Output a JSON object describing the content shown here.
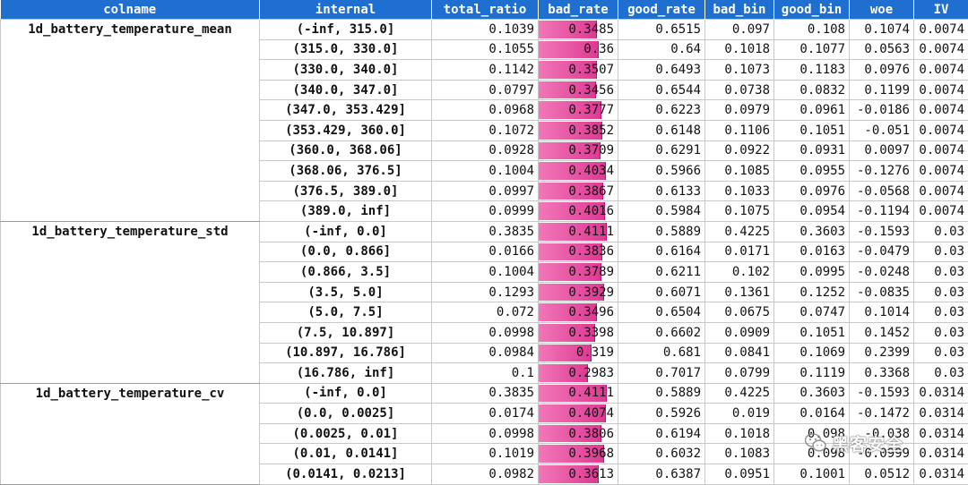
{
  "headers": [
    "colname",
    "internal",
    "total_ratio",
    "bad_rate",
    "good_rate",
    "bad_bin",
    "good_bin",
    "woe",
    "IV"
  ],
  "groups": [
    {
      "colname": "1d_battery_temperature_mean",
      "rows": [
        {
          "internal": "(-inf, 315.0]",
          "total_ratio": "0.1039",
          "bad_rate": "0.3485",
          "good_rate": "0.6515",
          "bad_bin": "0.097",
          "good_bin": "0.108",
          "woe": "0.1074",
          "IV": "0.0074"
        },
        {
          "internal": "(315.0, 330.0]",
          "total_ratio": "0.1055",
          "bad_rate": "0.36",
          "good_rate": "0.64",
          "bad_bin": "0.1018",
          "good_bin": "0.1077",
          "woe": "0.0563",
          "IV": "0.0074"
        },
        {
          "internal": "(330.0, 340.0]",
          "total_ratio": "0.1142",
          "bad_rate": "0.3507",
          "good_rate": "0.6493",
          "bad_bin": "0.1073",
          "good_bin": "0.1183",
          "woe": "0.0976",
          "IV": "0.0074"
        },
        {
          "internal": "(340.0, 347.0]",
          "total_ratio": "0.0797",
          "bad_rate": "0.3456",
          "good_rate": "0.6544",
          "bad_bin": "0.0738",
          "good_bin": "0.0832",
          "woe": "0.1199",
          "IV": "0.0074"
        },
        {
          "internal": "(347.0, 353.429]",
          "total_ratio": "0.0968",
          "bad_rate": "0.3777",
          "good_rate": "0.6223",
          "bad_bin": "0.0979",
          "good_bin": "0.0961",
          "woe": "-0.0186",
          "IV": "0.0074"
        },
        {
          "internal": "(353.429, 360.0]",
          "total_ratio": "0.1072",
          "bad_rate": "0.3852",
          "good_rate": "0.6148",
          "bad_bin": "0.1106",
          "good_bin": "0.1051",
          "woe": "-0.051",
          "IV": "0.0074"
        },
        {
          "internal": "(360.0, 368.06]",
          "total_ratio": "0.0928",
          "bad_rate": "0.3709",
          "good_rate": "0.6291",
          "bad_bin": "0.0922",
          "good_bin": "0.0931",
          "woe": "0.0097",
          "IV": "0.0074"
        },
        {
          "internal": "(368.06, 376.5]",
          "total_ratio": "0.1004",
          "bad_rate": "0.4034",
          "good_rate": "0.5966",
          "bad_bin": "0.1085",
          "good_bin": "0.0955",
          "woe": "-0.1276",
          "IV": "0.0074"
        },
        {
          "internal": "(376.5, 389.0]",
          "total_ratio": "0.0997",
          "bad_rate": "0.3867",
          "good_rate": "0.6133",
          "bad_bin": "0.1033",
          "good_bin": "0.0976",
          "woe": "-0.0568",
          "IV": "0.0074"
        },
        {
          "internal": "(389.0, inf]",
          "total_ratio": "0.0999",
          "bad_rate": "0.4016",
          "good_rate": "0.5984",
          "bad_bin": "0.1075",
          "good_bin": "0.0954",
          "woe": "-0.1194",
          "IV": "0.0074"
        }
      ]
    },
    {
      "colname": "1d_battery_temperature_std",
      "rows": [
        {
          "internal": "(-inf, 0.0]",
          "total_ratio": "0.3835",
          "bad_rate": "0.4111",
          "good_rate": "0.5889",
          "bad_bin": "0.4225",
          "good_bin": "0.3603",
          "woe": "-0.1593",
          "IV": "0.03"
        },
        {
          "internal": "(0.0, 0.866]",
          "total_ratio": "0.0166",
          "bad_rate": "0.3836",
          "good_rate": "0.6164",
          "bad_bin": "0.0171",
          "good_bin": "0.0163",
          "woe": "-0.0479",
          "IV": "0.03"
        },
        {
          "internal": "(0.866, 3.5]",
          "total_ratio": "0.1004",
          "bad_rate": "0.3789",
          "good_rate": "0.6211",
          "bad_bin": "0.102",
          "good_bin": "0.0995",
          "woe": "-0.0248",
          "IV": "0.03"
        },
        {
          "internal": "(3.5, 5.0]",
          "total_ratio": "0.1293",
          "bad_rate": "0.3929",
          "good_rate": "0.6071",
          "bad_bin": "0.1361",
          "good_bin": "0.1252",
          "woe": "-0.0835",
          "IV": "0.03"
        },
        {
          "internal": "(5.0, 7.5]",
          "total_ratio": "0.072",
          "bad_rate": "0.3496",
          "good_rate": "0.6504",
          "bad_bin": "0.0675",
          "good_bin": "0.0747",
          "woe": "0.1014",
          "IV": "0.03"
        },
        {
          "internal": "(7.5, 10.897]",
          "total_ratio": "0.0998",
          "bad_rate": "0.3398",
          "good_rate": "0.6602",
          "bad_bin": "0.0909",
          "good_bin": "0.1051",
          "woe": "0.1452",
          "IV": "0.03"
        },
        {
          "internal": "(10.897, 16.786]",
          "total_ratio": "0.0984",
          "bad_rate": "0.319",
          "good_rate": "0.681",
          "bad_bin": "0.0841",
          "good_bin": "0.1069",
          "woe": "0.2399",
          "IV": "0.03"
        },
        {
          "internal": "(16.786, inf]",
          "total_ratio": "0.1",
          "bad_rate": "0.2983",
          "good_rate": "0.7017",
          "bad_bin": "0.0799",
          "good_bin": "0.1119",
          "woe": "0.3368",
          "IV": "0.03"
        }
      ]
    },
    {
      "colname": "1d_battery_temperature_cv",
      "rows": [
        {
          "internal": "(-inf, 0.0]",
          "total_ratio": "0.3835",
          "bad_rate": "0.4111",
          "good_rate": "0.5889",
          "bad_bin": "0.4225",
          "good_bin": "0.3603",
          "woe": "-0.1593",
          "IV": "0.0314"
        },
        {
          "internal": "(0.0, 0.0025]",
          "total_ratio": "0.0174",
          "bad_rate": "0.4074",
          "good_rate": "0.5926",
          "bad_bin": "0.019",
          "good_bin": "0.0164",
          "woe": "-0.1472",
          "IV": "0.0314"
        },
        {
          "internal": "(0.0025, 0.01]",
          "total_ratio": "0.0998",
          "bad_rate": "0.3806",
          "good_rate": "0.6194",
          "bad_bin": "0.1018",
          "good_bin": "0.098",
          "woe": "-0.038",
          "IV": "0.0314"
        },
        {
          "internal": "(0.01, 0.0141]",
          "total_ratio": "0.1019",
          "bad_rate": "0.3968",
          "good_rate": "0.6032",
          "bad_bin": "0.1083",
          "good_bin": "0.098",
          "woe": "-0.0999",
          "IV": "0.0314"
        },
        {
          "internal": "(0.0141, 0.0213]",
          "total_ratio": "0.0982",
          "bad_rate": "0.3613",
          "good_rate": "0.6387",
          "bad_bin": "0.0951",
          "good_bin": "0.1001",
          "woe": "0.0512",
          "IV": "0.0314"
        }
      ]
    }
  ],
  "bad_rate_bar_max": 0.41,
  "colors": {
    "header_bg": "#1f6fd1",
    "bar": "#de3a93"
  },
  "watermark": {
    "icon": "wechat-icon",
    "text": "黑客安全"
  }
}
